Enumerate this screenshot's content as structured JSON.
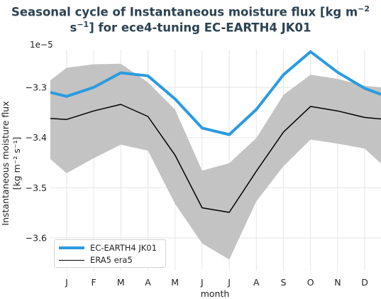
{
  "chart_data": {
    "type": "line",
    "title_line1": "Seasonal cycle of Instantaneous moisture flux [kg m",
    "title_sup1": "−2",
    "title_line2_pre": "s",
    "title_sup2": "−1",
    "title_line2_post": "] for ece4-tuning EC-EARTH4 JK01",
    "offset_label": "1e−5",
    "xlabel": "month",
    "ylabel_line1": "Instantaneous moisture flux",
    "ylabel_line2": "[kg m⁻² s⁻¹]",
    "categories": [
      "J",
      "F",
      "M",
      "A",
      "M",
      "J",
      "J",
      "A",
      "S",
      "O",
      "N",
      "D"
    ],
    "x_range": [
      -0.6,
      11.6
    ],
    "ylim": [
      -3.665,
      -3.225
    ],
    "yticks": [
      -3.3,
      -3.4,
      -3.5,
      -3.6
    ],
    "ytick_labels": [
      "−3.3",
      "−3.4",
      "−3.5",
      "−3.6"
    ],
    "grid": true,
    "legend_position": "bottom-left",
    "series": [
      {
        "name": "EC-EARTH4 JK01",
        "color": "#2b9be0",
        "x": [
          -0.6,
          0,
          1,
          2,
          3,
          4,
          5,
          6,
          7,
          8,
          9,
          10,
          11,
          11.6
        ],
        "values": [
          -3.31,
          -3.318,
          -3.3,
          -3.271,
          -3.277,
          -3.323,
          -3.381,
          -3.394,
          -3.344,
          -3.275,
          -3.229,
          -3.27,
          -3.302,
          -3.314
        ]
      },
      {
        "name": "ERA5 era5",
        "color": "#000000",
        "x": [
          -0.6,
          0,
          1,
          2,
          3,
          4,
          5,
          6,
          7,
          8,
          9,
          10,
          11,
          11.6
        ],
        "values": [
          -3.362,
          -3.364,
          -3.347,
          -3.334,
          -3.358,
          -3.435,
          -3.54,
          -3.549,
          -3.467,
          -3.389,
          -3.338,
          -3.347,
          -3.36,
          -3.363
        ]
      }
    ],
    "band": {
      "color": "#c3c3c3",
      "x": [
        -0.6,
        0,
        1,
        2,
        3,
        4,
        5,
        6,
        7,
        8,
        9,
        10,
        11,
        11.6
      ],
      "upper": [
        -3.286,
        -3.261,
        -3.254,
        -3.253,
        -3.29,
        -3.344,
        -3.466,
        -3.451,
        -3.401,
        -3.315,
        -3.275,
        -3.283,
        -3.297,
        -3.3
      ],
      "lower": [
        -3.443,
        -3.471,
        -3.441,
        -3.414,
        -3.426,
        -3.532,
        -3.611,
        -3.643,
        -3.527,
        -3.457,
        -3.404,
        -3.412,
        -3.422,
        -3.452
      ]
    }
  }
}
